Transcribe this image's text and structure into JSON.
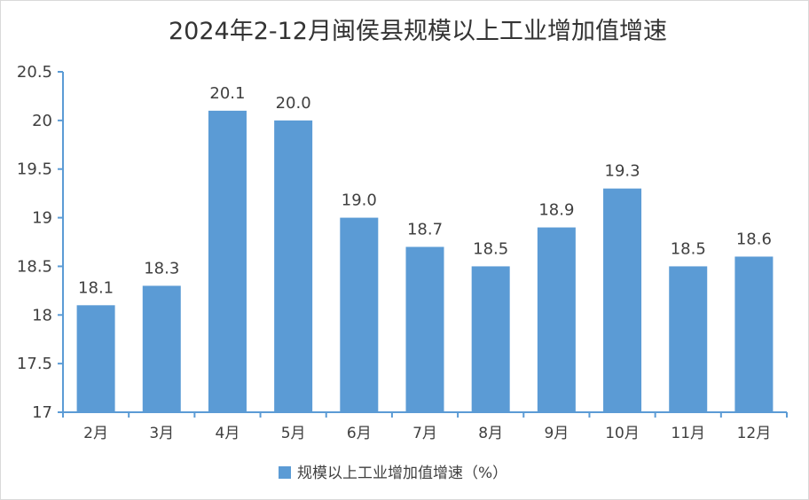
{
  "chart_data": {
    "type": "bar",
    "title": "2024年2-12月闽侯县规模以上工业增加值增速",
    "categories": [
      "2月",
      "3月",
      "4月",
      "5月",
      "6月",
      "7月",
      "8月",
      "9月",
      "10月",
      "11月",
      "12月"
    ],
    "series": [
      {
        "name": "规模以上工业增加值增速（%）",
        "values": [
          18.1,
          18.3,
          20.1,
          20.0,
          19.0,
          18.7,
          18.5,
          18.9,
          19.3,
          18.5,
          18.6
        ],
        "data_labels": [
          "18.1",
          "18.3",
          "20.1",
          "20.0",
          "19.0",
          "18.7",
          "18.5",
          "18.9",
          "19.3",
          "18.5",
          "18.6"
        ]
      }
    ],
    "y_ticks": [
      "17",
      "17.5",
      "18",
      "18.5",
      "19",
      "19.5",
      "20",
      "20.5"
    ],
    "ylim": [
      17,
      20.5
    ],
    "grid": false,
    "legend_position": "bottom",
    "colors": {
      "bar": "#5b9bd5",
      "axis": "#5b9bd5",
      "text": "#404040",
      "title": "#333333"
    }
  }
}
